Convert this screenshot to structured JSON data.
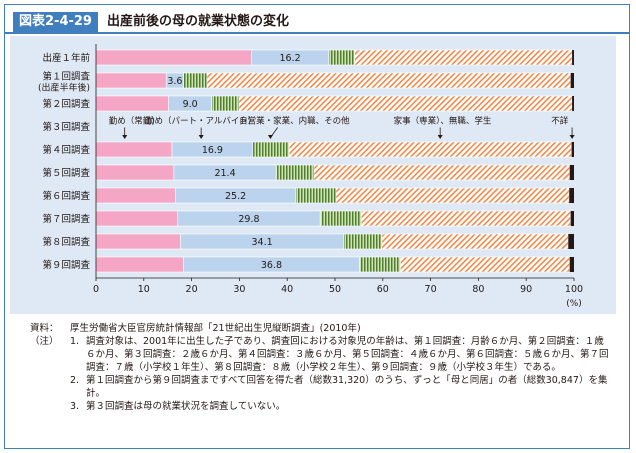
{
  "header": {
    "figure_number": "図表2-4-29",
    "title": "出産前後の母の就業状態の変化"
  },
  "chart_data": {
    "type": "bar",
    "orientation": "horizontal",
    "stacked": true,
    "unit": "(%)",
    "xlim": [
      0,
      100
    ],
    "x_ticks": [
      0,
      10,
      20,
      30,
      40,
      50,
      60,
      70,
      80,
      90,
      100
    ],
    "grid": false,
    "categories": [
      {
        "label": "出産１年前",
        "sublabel": ""
      },
      {
        "label": "第１回調査",
        "sublabel": "(出産半年後)"
      },
      {
        "label": "第２回調査",
        "sublabel": ""
      },
      {
        "label": "第３回調査",
        "sublabel": ""
      },
      {
        "label": "第４回調査",
        "sublabel": ""
      },
      {
        "label": "第５回調査",
        "sublabel": ""
      },
      {
        "label": "第６回調査",
        "sublabel": ""
      },
      {
        "label": "第７回調査",
        "sublabel": ""
      },
      {
        "label": "第８回調査",
        "sublabel": ""
      },
      {
        "label": "第９回調査",
        "sublabel": ""
      }
    ],
    "series": [
      {
        "name": "勤め（常勤）",
        "color": "#f4a6c4",
        "values": [
          32.5,
          14.7,
          15.2,
          null,
          15.9,
          16.3,
          16.6,
          17.1,
          17.7,
          18.3
        ]
      },
      {
        "name": "勤め（パート・アルバイト）",
        "color": "#bcd3ee",
        "values": [
          16.2,
          3.6,
          9.0,
          null,
          16.9,
          21.4,
          25.2,
          29.8,
          34.1,
          36.8
        ]
      },
      {
        "name": "自営業・家業、内職、その他",
        "color": "#6f9e43",
        "values": [
          5.4,
          4.9,
          5.7,
          null,
          7.6,
          7.9,
          8.4,
          8.6,
          8.0,
          8.6
        ]
      },
      {
        "name": "家事（専業）、無職、学生",
        "color": "#f08a4b",
        "values": [
          45.5,
          76.1,
          69.7,
          null,
          59.1,
          53.5,
          48.8,
          43.8,
          39.0,
          35.4
        ]
      },
      {
        "name": "不詳",
        "color": "#231815",
        "values": [
          0.4,
          0.7,
          0.4,
          null,
          0.5,
          0.9,
          1.0,
          0.7,
          1.2,
          0.9
        ]
      }
    ],
    "data_labels": {
      "series_index": 1,
      "labels": [
        "16.2",
        "3.6",
        "9.0",
        "",
        "16.9",
        "21.4",
        "25.2",
        "29.8",
        "34.1",
        "36.8"
      ]
    },
    "legend_placement": "inline-callouts-row-3"
  },
  "notes": {
    "source_label": "資料：",
    "source_text": "厚生労働省大臣官房統計情報部「21世紀出生児縦断調査」(2010年)",
    "note_label": "（注）",
    "items": [
      {
        "num": "1.",
        "text": "調査対象は、2001年に出生した子であり、調査回における対象児の年齢は、第１回調査：月齢６か月、第２回調査：１歳６か月、第３回調査：２歳６か月、第４回調査：３歳６か月、第５回調査：４歳６か月、第６回調査：５歳６か月、第７回調査：７歳（小学校１年生）、第８回調査：８歳（小学校２年生）、第９回調査：９歳（小学校３年生）である。"
      },
      {
        "num": "2.",
        "text": "第１回調査から第９回調査まですべて回答を得た者（総数31,320）のうち、ずっと「母と同居」の者（総数30,847）を集計。"
      },
      {
        "num": "3.",
        "text": "第３回調査は母の就業状況を調査していない。"
      }
    ]
  }
}
